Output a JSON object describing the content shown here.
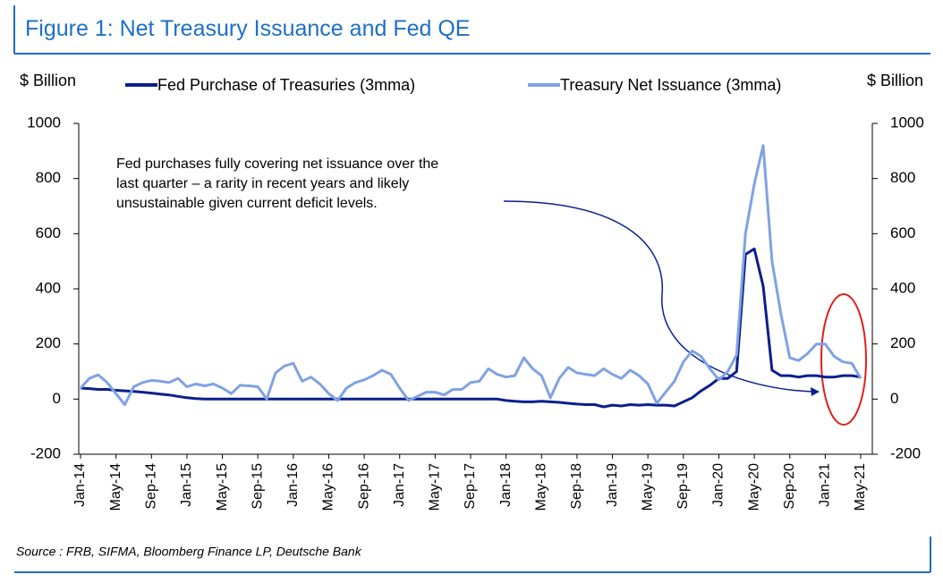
{
  "chart_data": {
    "type": "line",
    "title": "Figure 1: Net Treasury Issuance and Fed QE",
    "ylabel": "$ Billion",
    "y2label": "$ Billion",
    "annotation": [
      "Fed purchases fully covering net issuance over the",
      "last quarter – a rarity in recent years and likely",
      "unsustainable given current deficit levels."
    ],
    "source": "Source : FRB, SIFMA, Bloomberg Finance LP, Deutsche Bank",
    "categories": [
      "Jan-14",
      null,
      null,
      null,
      "May-14",
      null,
      null,
      null,
      "Sep-14",
      null,
      null,
      null,
      "Jan-15",
      null,
      null,
      null,
      "May-15",
      null,
      null,
      null,
      "Sep-15",
      null,
      null,
      null,
      "Jan-16",
      null,
      null,
      null,
      "May-16",
      null,
      null,
      null,
      "Sep-16",
      null,
      null,
      null,
      "Jan-17",
      null,
      null,
      null,
      "May-17",
      null,
      null,
      null,
      "Sep-17",
      null,
      null,
      null,
      "Jan-18",
      null,
      null,
      null,
      "May-18",
      null,
      null,
      null,
      "Sep-18",
      null,
      null,
      null,
      "Jan-19",
      null,
      null,
      null,
      "May-19",
      null,
      null,
      null,
      "Sep-19",
      null,
      null,
      null,
      "Jan-20",
      null,
      null,
      null,
      "May-20",
      null,
      null,
      null,
      "Sep-20",
      null,
      null,
      null,
      "Jan-21",
      null,
      null,
      null,
      "May-21"
    ],
    "series": [
      {
        "name": "Fed Purchase of Treasuries (3mma)",
        "color": "#0b1f8c",
        "values": [
          40,
          38,
          35,
          35,
          32,
          30,
          28,
          25,
          22,
          18,
          15,
          10,
          5,
          2,
          0,
          0,
          0,
          0,
          0,
          0,
          0,
          0,
          0,
          0,
          0,
          0,
          0,
          0,
          0,
          0,
          0,
          0,
          0,
          0,
          0,
          0,
          0,
          0,
          0,
          0,
          0,
          0,
          0,
          0,
          0,
          0,
          0,
          0,
          -5,
          -8,
          -10,
          -10,
          -8,
          -10,
          -12,
          -15,
          -18,
          -20,
          -20,
          -28,
          -22,
          -25,
          -20,
          -22,
          -20,
          -22,
          -22,
          -25,
          -10,
          5,
          30,
          50,
          75,
          75,
          100,
          525,
          545,
          410,
          105,
          85,
          85,
          80,
          85,
          85,
          80,
          80,
          85,
          85,
          80
        ]
      },
      {
        "name": "Treasury Net Issuance (3mma)",
        "color": "#7fa2e2",
        "values": [
          40,
          75,
          88,
          60,
          20,
          -20,
          45,
          60,
          68,
          65,
          60,
          75,
          45,
          55,
          48,
          55,
          40,
          20,
          50,
          48,
          45,
          0,
          95,
          120,
          130,
          65,
          80,
          55,
          20,
          -5,
          40,
          60,
          70,
          85,
          105,
          90,
          40,
          -5,
          10,
          25,
          25,
          15,
          35,
          35,
          60,
          65,
          110,
          90,
          80,
          85,
          150,
          110,
          85,
          5,
          75,
          115,
          95,
          90,
          85,
          110,
          90,
          75,
          105,
          85,
          55,
          -15,
          25,
          65,
          135,
          175,
          155,
          110,
          70,
          100,
          160,
          600,
          780,
          920,
          500,
          310,
          150,
          140,
          165,
          200,
          200,
          155,
          135,
          130,
          75
        ]
      }
    ],
    "ylim": [
      -200,
      1000
    ],
    "yticks": [
      -200,
      0,
      200,
      400,
      600,
      800,
      1000
    ],
    "y2lim": [
      -200,
      1000
    ],
    "y2ticks": [
      -200,
      0,
      200,
      400,
      600,
      800,
      1000
    ]
  }
}
